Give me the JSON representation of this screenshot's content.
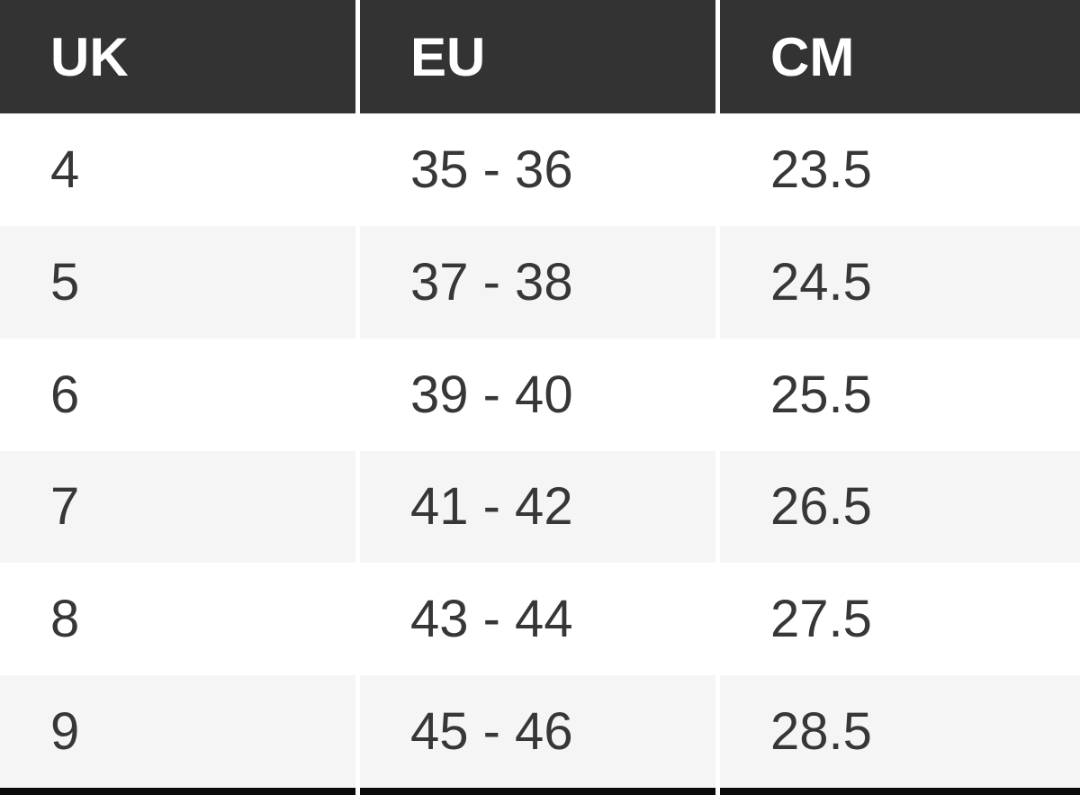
{
  "table": {
    "columns": [
      {
        "key": "uk",
        "label": "UK"
      },
      {
        "key": "eu",
        "label": "EU"
      },
      {
        "key": "cm",
        "label": "CM"
      }
    ],
    "rows": [
      {
        "uk": "4",
        "eu": "35 - 36",
        "cm": "23.5"
      },
      {
        "uk": "5",
        "eu": "37 - 38",
        "cm": "24.5"
      },
      {
        "uk": "6",
        "eu": "39 - 40",
        "cm": "25.5"
      },
      {
        "uk": "7",
        "eu": "41 - 42",
        "cm": "26.5"
      },
      {
        "uk": "8",
        "eu": "43 - 44",
        "cm": "27.5"
      },
      {
        "uk": "9",
        "eu": "45 - 46",
        "cm": "28.5"
      }
    ]
  },
  "colors": {
    "header_bg": "#333333",
    "header_text": "#ffffff",
    "row_bg": "#ffffff",
    "row_alt_bg": "#f5f5f5",
    "body_text": "#373737",
    "gap_color": "#ffffff",
    "bottom_bar": "#0a0a0a"
  }
}
